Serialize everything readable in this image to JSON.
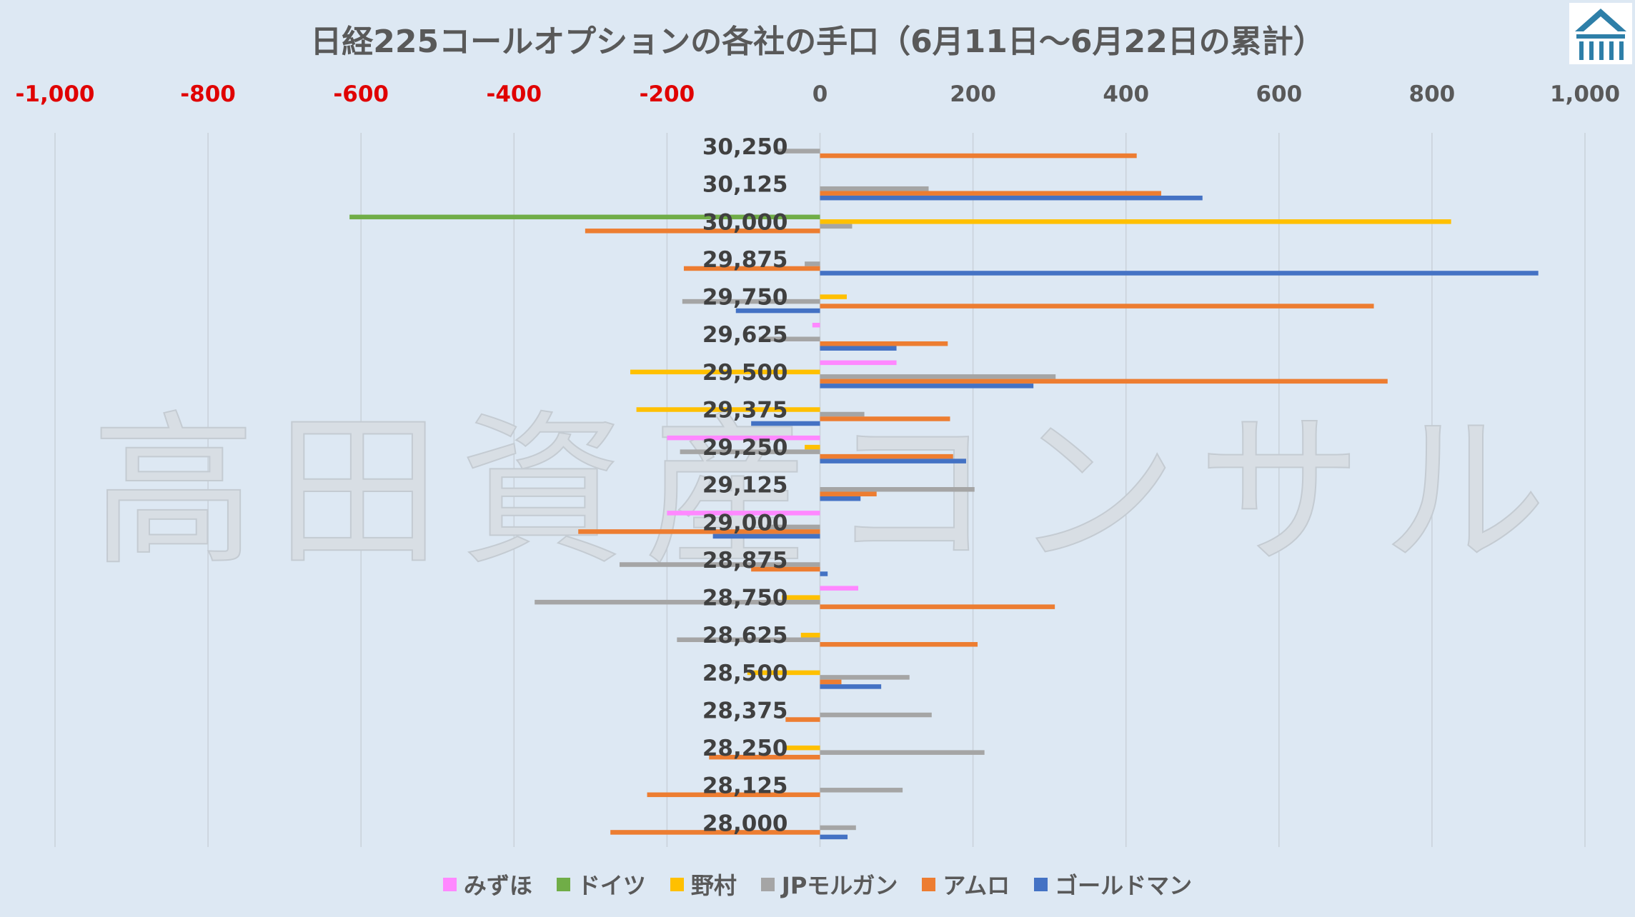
{
  "chart_data": {
    "type": "bar",
    "orientation": "horizontal",
    "title": "日経225コールオプションの各社の手口（6月11日～6月22日の累計）",
    "watermark": "高田資産コンサル",
    "xlim": [
      -1000,
      1000
    ],
    "x_ticks": [
      "-1,000",
      "-800",
      "-600",
      "-400",
      "-200",
      "0",
      "200",
      "400",
      "600",
      "800",
      "1,000"
    ],
    "x_tick_values": [
      -1000,
      -800,
      -600,
      -400,
      -200,
      0,
      200,
      400,
      600,
      800,
      1000
    ],
    "negative_tick_color": "#e00000",
    "grid": true,
    "legend_position": "bottom",
    "categories": [
      "30,250",
      "30,125",
      "30,000",
      "29,875",
      "29,750",
      "29,625",
      "29,500",
      "29,375",
      "29,250",
      "29,125",
      "29,000",
      "28,875",
      "28,750",
      "28,625",
      "28,500",
      "28,375",
      "28,250",
      "28,125",
      "28,000"
    ],
    "series": [
      {
        "name": "みずほ",
        "color": "#ff88ff",
        "values": [
          0,
          0,
          0,
          0,
          0,
          -10,
          100,
          0,
          -200,
          0,
          -200,
          0,
          50,
          0,
          0,
          0,
          0,
          0,
          0
        ]
      },
      {
        "name": "ドイツ",
        "color": "#70ad47",
        "values": [
          0,
          0,
          -615,
          0,
          0,
          0,
          0,
          0,
          0,
          0,
          0,
          0,
          0,
          0,
          0,
          0,
          0,
          0,
          0
        ]
      },
      {
        "name": "野村",
        "color": "#ffc000",
        "values": [
          0,
          0,
          825,
          0,
          35,
          0,
          -248,
          -240,
          -20,
          0,
          0,
          0,
          -50,
          -25,
          -95,
          0,
          -45,
          0,
          0
        ]
      },
      {
        "name": "JPモルガン",
        "color": "#a5a5a5",
        "values": [
          -60,
          142,
          42,
          -20,
          -180,
          -80,
          308,
          58,
          -183,
          202,
          -70,
          -262,
          -373,
          -187,
          117,
          146,
          215,
          108,
          47
        ]
      },
      {
        "name": "アムロ",
        "color": "#ed7d31",
        "values": [
          414,
          446,
          -307,
          -178,
          724,
          167,
          742,
          170,
          174,
          74,
          -316,
          -90,
          307,
          206,
          28,
          -45,
          -145,
          -226,
          -274
        ]
      },
      {
        "name": "ゴールドマン",
        "color": "#4472c4",
        "values": [
          0,
          500,
          0,
          939,
          -110,
          100,
          279,
          -90,
          191,
          53,
          -140,
          10,
          0,
          0,
          80,
          0,
          0,
          0,
          36
        ]
      }
    ]
  }
}
